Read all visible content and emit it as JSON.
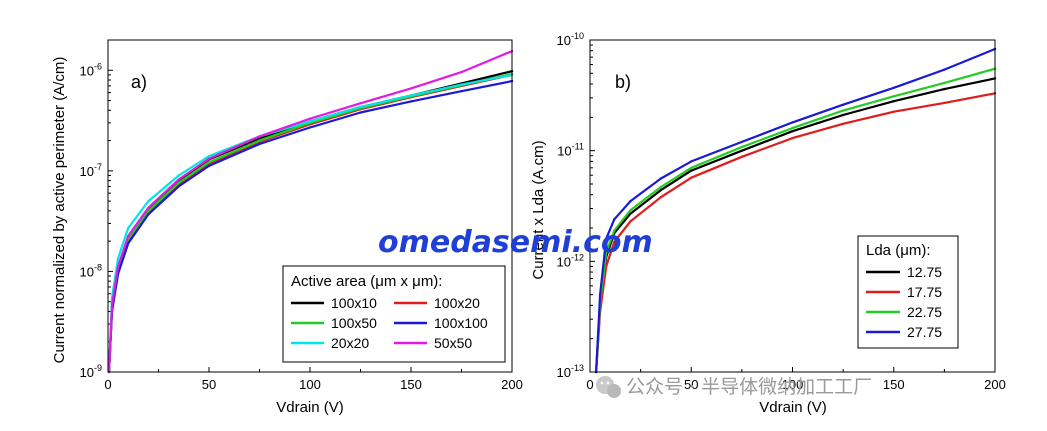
{
  "watermark": {
    "main_text": "omedasemi.com",
    "footer_text": "公众号 · 半导体微纳加工工厂"
  },
  "chart_data": [
    {
      "type": "line",
      "panel_label": "a)",
      "xlabel": "Vdrain (V)",
      "ylabel": "Current normalized by active perimeter (A/cm)",
      "xlim": [
        0,
        200
      ],
      "ylim": [
        1e-09,
        2e-06
      ],
      "yscale": "log",
      "x_ticks": [
        "0",
        "50",
        "100",
        "150",
        "200"
      ],
      "y_ticks": [
        {
          "base": "10",
          "exp": "-9",
          "value": 1e-09
        },
        {
          "base": "10",
          "exp": "-8",
          "value": 1e-08
        },
        {
          "base": "10",
          "exp": "-7",
          "value": 1e-07
        },
        {
          "base": "10",
          "exp": "-6",
          "value": 1e-06
        }
      ],
      "legend": {
        "title": "Active area (μm x μm):",
        "location": "lower-right"
      },
      "series": [
        {
          "name": "100x10",
          "color": "#000000",
          "x": [
            0.5,
            2,
            5,
            10,
            20,
            35,
            50,
            75,
            100,
            125,
            150,
            175,
            200
          ],
          "y": [
            1e-09,
            4.5e-09,
            1.1e-08,
            2.2e-08,
            4.2e-08,
            8e-08,
            1.3e-07,
            2.1e-07,
            3.1e-07,
            4.3e-07,
            5.6e-07,
            7.4e-07,
            9.8e-07
          ]
        },
        {
          "name": "100x20",
          "color": "#e01b1b",
          "x": [
            0.5,
            2,
            5,
            10,
            20,
            35,
            50,
            75,
            100,
            125,
            150,
            175,
            200
          ],
          "y": [
            1e-09,
            4.2e-09,
            1e-08,
            2e-08,
            3.9e-08,
            7.3e-08,
            1.18e-07,
            1.95e-07,
            2.9e-07,
            4.1e-07,
            5.4e-07,
            7e-07,
            9e-07
          ]
        },
        {
          "name": "100x50",
          "color": "#22cc22",
          "x": [
            0.5,
            2,
            5,
            10,
            20,
            35,
            50,
            75,
            100,
            125,
            150,
            175,
            200
          ],
          "y": [
            1e-09,
            4.3e-09,
            1.05e-08,
            2.1e-08,
            4e-08,
            7.6e-08,
            1.22e-07,
            2e-07,
            3e-07,
            4.2e-07,
            5.5e-07,
            7.1e-07,
            9.2e-07
          ]
        },
        {
          "name": "100x100",
          "color": "#1a1ad6",
          "x": [
            0.5,
            2,
            5,
            10,
            20,
            35,
            50,
            75,
            100,
            125,
            150,
            175,
            200
          ],
          "y": [
            1e-09,
            4e-09,
            9.5e-09,
            1.9e-08,
            3.7e-08,
            7e-08,
            1.12e-07,
            1.85e-07,
            2.7e-07,
            3.8e-07,
            4.9e-07,
            6.2e-07,
            7.8e-07
          ]
        },
        {
          "name": "20x20",
          "color": "#00e5e5",
          "x": [
            0.5,
            2,
            5,
            10,
            20,
            35,
            50,
            75,
            100,
            125,
            150,
            175,
            200
          ],
          "y": [
            1e-09,
            5.5e-09,
            1.35e-08,
            2.7e-08,
            5e-08,
            9e-08,
            1.4e-07,
            2.2e-07,
            3.1e-07,
            4.3e-07,
            5.6e-07,
            7.2e-07,
            9e-07
          ]
        },
        {
          "name": "50x50",
          "color": "#e21be2",
          "x": [
            0.5,
            2,
            5,
            10,
            20,
            35,
            50,
            75,
            100,
            125,
            150,
            175,
            200
          ],
          "y": [
            1e-09,
            4.6e-09,
            1.12e-08,
            2.25e-08,
            4.3e-08,
            8.2e-08,
            1.32e-07,
            2.2e-07,
            3.3e-07,
            4.7e-07,
            6.6e-07,
            9.6e-07,
            1.55e-06
          ]
        }
      ]
    },
    {
      "type": "line",
      "panel_label": "b)",
      "xlabel": "Vdrain (V)",
      "ylabel": "Current x Lda (A.cm)",
      "xlim": [
        0,
        200
      ],
      "ylim": [
        1e-13,
        1e-10
      ],
      "yscale": "log",
      "x_ticks": [
        "0",
        "50",
        "100",
        "150",
        "200"
      ],
      "y_ticks": [
        {
          "base": "10",
          "exp": "-13",
          "value": 1e-13
        },
        {
          "base": "10",
          "exp": "-12",
          "value": 1e-12
        },
        {
          "base": "10",
          "exp": "-11",
          "value": 1e-11
        },
        {
          "base": "10",
          "exp": "-10",
          "value": 1e-10
        }
      ],
      "legend": {
        "title": "Lda (μm):",
        "location": "center-right"
      },
      "series": [
        {
          "name": "12.75",
          "color": "#000000",
          "x": [
            3,
            5,
            8,
            12,
            20,
            35,
            50,
            75,
            100,
            125,
            150,
            175,
            200
          ],
          "y": [
            1e-13,
            4e-13,
            1.1e-12,
            1.8e-12,
            2.7e-12,
            4.4e-12,
            6.6e-12,
            1e-11,
            1.5e-11,
            2.1e-11,
            2.8e-11,
            3.6e-11,
            4.5e-11
          ]
        },
        {
          "name": "17.75",
          "color": "#e01b1b",
          "x": [
            3,
            5,
            8,
            12,
            20,
            35,
            50,
            75,
            100,
            125,
            150,
            175,
            200
          ],
          "y": [
            1e-13,
            3.5e-13,
            9e-13,
            1.5e-12,
            2.3e-12,
            3.8e-12,
            5.7e-12,
            8.8e-12,
            1.3e-11,
            1.75e-11,
            2.25e-11,
            2.7e-11,
            3.3e-11
          ]
        },
        {
          "name": "22.75",
          "color": "#22cc22",
          "x": [
            3,
            5,
            8,
            12,
            20,
            35,
            50,
            75,
            100,
            125,
            150,
            175,
            200
          ],
          "y": [
            1e-13,
            4.2e-13,
            1.2e-12,
            1.9e-12,
            2.9e-12,
            4.7e-12,
            7e-12,
            1.08e-11,
            1.6e-11,
            2.3e-11,
            3.1e-11,
            4.1e-11,
            5.5e-11
          ]
        },
        {
          "name": "27.75",
          "color": "#1a1ad6",
          "x": [
            3,
            5,
            8,
            12,
            20,
            35,
            50,
            75,
            100,
            125,
            150,
            175,
            200
          ],
          "y": [
            1e-13,
            5e-13,
            1.6e-12,
            2.4e-12,
            3.5e-12,
            5.6e-12,
            8e-12,
            1.2e-11,
            1.8e-11,
            2.6e-11,
            3.7e-11,
            5.4e-11,
            8.3e-11
          ]
        }
      ]
    }
  ]
}
